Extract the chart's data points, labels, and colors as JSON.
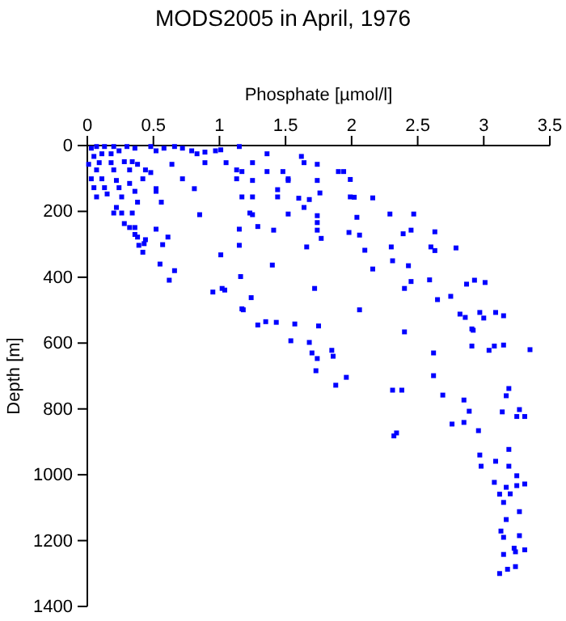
{
  "chart_data": {
    "type": "scatter",
    "title": "MODS2005 in April, 1976",
    "xlabel": "Phosphate [µmol/l]",
    "ylabel": "Depth [m]",
    "xlim": [
      0,
      3.5
    ],
    "xticks": [
      0,
      0.5,
      1,
      1.5,
      2,
      2.5,
      3,
      3.5
    ],
    "ylim": [
      1400,
      0
    ],
    "yticks": [
      0,
      200,
      400,
      600,
      800,
      1000,
      1200,
      1400
    ],
    "marker": "square",
    "series": [
      {
        "color": "#0000ff",
        "x": [
          0.03,
          0.07,
          0.13,
          0.2,
          0.11,
          0.18,
          0.05,
          0.24,
          0.3,
          0.36,
          0.48,
          0.52,
          0.58,
          0.66,
          0.72,
          0.79,
          0.83,
          0.89,
          0.97,
          1.01,
          1.15,
          1.36,
          1.62,
          0.01,
          0.09,
          0.18,
          0.28,
          0.34,
          0.38,
          0.07,
          0.2,
          0.32,
          0.44,
          0.48,
          0.64,
          0.89,
          1.05,
          1.13,
          1.17,
          1.25,
          1.36,
          1.48,
          1.52,
          1.64,
          1.74,
          0.03,
          0.11,
          0.22,
          0.32,
          0.42,
          0.52,
          0.72,
          0.81,
          1.13,
          1.25,
          1.44,
          1.52,
          1.74,
          0.05,
          0.13,
          0.24,
          0.36,
          0.07,
          0.15,
          0.26,
          0.52,
          1.17,
          1.25,
          1.44,
          1.6,
          1.68,
          1.76,
          0.22,
          0.2,
          0.26,
          0.34,
          0.38,
          0.56,
          0.85,
          1.23,
          1.25,
          1.52,
          1.64,
          1.74,
          0.28,
          0.32,
          0.36,
          0.52,
          0.36,
          1.15,
          1.29,
          1.41,
          1.74,
          1.74,
          0.38,
          0.44,
          0.39,
          0.43,
          0.57,
          0.61,
          1.15,
          1.66,
          1.77,
          0.42,
          1.01,
          0.55,
          0.66,
          1.4,
          0.62,
          1.16,
          0.95,
          1.02,
          1.04,
          1.24,
          1.17,
          1.18,
          1.72,
          1.29,
          1.35,
          1.43,
          1.57,
          1.75,
          1.54,
          1.68,
          1.7,
          1.74,
          1.73,
          1.99,
          1.99,
          2.16,
          2.02,
          2.04,
          2.29,
          2.47,
          2.45,
          2.39,
          2.63,
          2.06,
          1.98,
          2.1,
          2.3,
          2.6,
          2.63,
          2.79,
          2.16,
          2.31,
          2.43,
          2.45,
          2.59,
          2.4,
          2.65,
          2.75,
          2.87,
          2.93,
          3.01,
          2.82,
          2.86,
          2.97,
          3.0,
          3.09,
          3.15,
          2.91,
          2.92,
          2.4,
          2.62,
          2.91,
          3.04,
          3.08,
          3.15,
          3.35,
          2.06,
          1.85,
          1.86,
          1.9,
          1.94,
          1.96,
          1.88,
          2.31,
          2.38,
          2.62,
          2.69,
          2.85,
          2.89,
          2.76,
          2.85,
          2.96,
          2.34,
          2.32,
          3.19,
          3.17,
          3.14,
          3.27,
          3.25,
          3.31,
          2.97,
          3.09,
          2.98,
          3.19,
          3.19,
          3.25,
          3.31,
          3.25,
          3.08,
          3.17,
          3.12,
          3.2,
          3.15,
          3.27,
          3.17,
          3.13,
          3.15,
          3.27,
          3.23,
          3.24,
          3.31,
          3.15,
          3.24,
          3.18,
          3.12
        ],
        "values": [
          8,
          3,
          3,
          3,
          25,
          25,
          33,
          16,
          3,
          8,
          3,
          16,
          8,
          3,
          8,
          16,
          25,
          20,
          16,
          13,
          3,
          25,
          33,
          57,
          52,
          52,
          49,
          49,
          57,
          74,
          74,
          74,
          74,
          82,
          57,
          52,
          52,
          74,
          79,
          52,
          79,
          79,
          101,
          52,
          57,
          101,
          101,
          106,
          115,
          101,
          131,
          101,
          131,
          101,
          106,
          134,
          106,
          106,
          128,
          128,
          128,
          139,
          156,
          147,
          156,
          139,
          156,
          156,
          156,
          160,
          164,
          144,
          188,
          205,
          205,
          205,
          172,
          172,
          210,
          205,
          210,
          208,
          188,
          213,
          237,
          249,
          249,
          254,
          270,
          254,
          246,
          257,
          234,
          257,
          278,
          286,
          303,
          298,
          301,
          278,
          303,
          308,
          282,
          324,
          332,
          360,
          380,
          363,
          409,
          398,
          445,
          434,
          439,
          462,
          496,
          499,
          434,
          545,
          535,
          537,
          542,
          548,
          593,
          598,
          630,
          647,
          684,
          156,
          103,
          159,
          157,
          218,
          208,
          208,
          257,
          268,
          262,
          272,
          264,
          318,
          308,
          308,
          319,
          311,
          375,
          350,
          365,
          413,
          408,
          434,
          468,
          458,
          421,
          409,
          416,
          512,
          522,
          507,
          524,
          507,
          517,
          557,
          561,
          566,
          630,
          609,
          622,
          609,
          606,
          620,
          499,
          622,
          640,
          79,
          79,
          704,
          728,
          743,
          743,
          699,
          758,
          773,
          807,
          846,
          841,
          866,
          873,
          882,
          738,
          760,
          809,
          802,
          823,
          823,
          940,
          959,
          974,
          923,
          974,
          1003,
          1028,
          1033,
          1023,
          1038,
          1059,
          1058,
          1084,
          1112,
          1136,
          1171,
          1190,
          1185,
          1223,
          1234,
          1228,
          1242,
          1279,
          1287,
          1300
        ]
      }
    ]
  }
}
